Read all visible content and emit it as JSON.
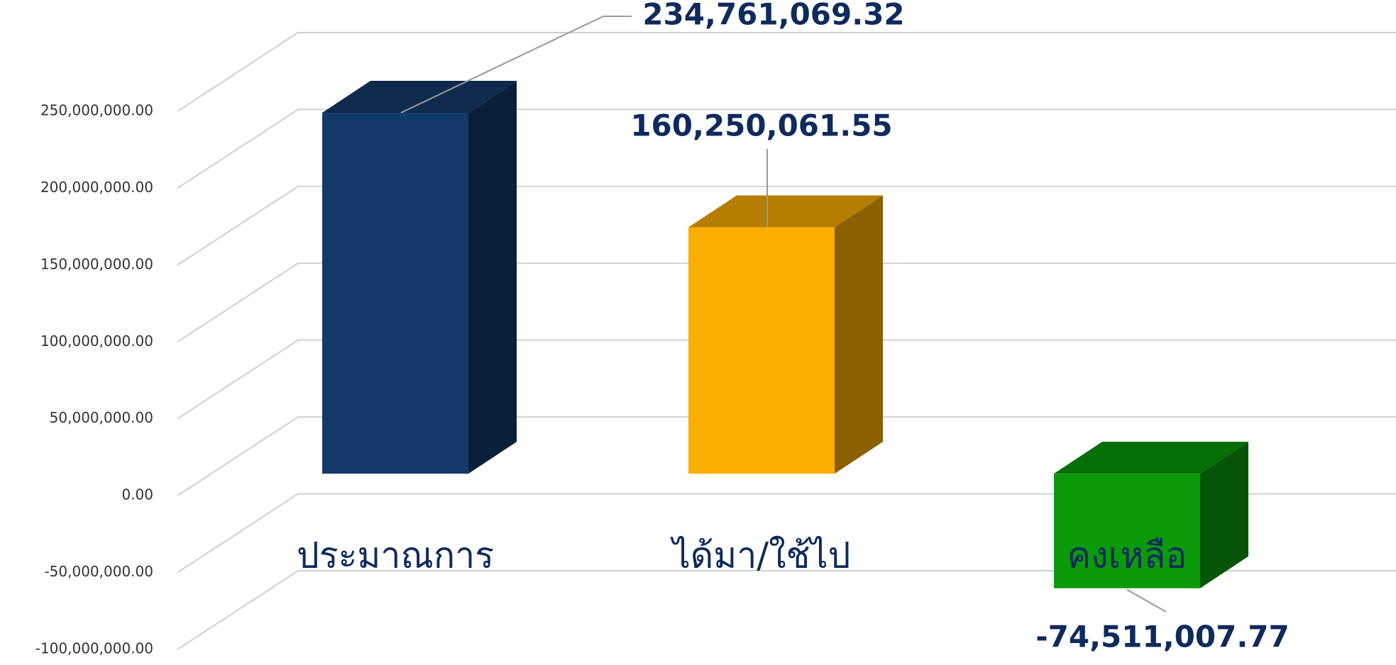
{
  "chart_data": {
    "type": "bar3d",
    "categories": [
      "ประมาณการ",
      "ได้มา/ใช้ไป",
      "คงเหลือ"
    ],
    "values": [
      234761069.32,
      160250061.55,
      -74511007.77
    ],
    "value_labels": [
      "234,761,069.32",
      "160,250,061.55",
      "-74,511,007.77"
    ],
    "colors": [
      "#133a6a",
      "#fdae00",
      "#0a9a0a"
    ],
    "ylim": [
      -100000000,
      250000000
    ],
    "yticks": [
      {
        "value": -100000000,
        "label": "-100,000,000.00"
      },
      {
        "value": -50000000,
        "label": "-50,000,000.00"
      },
      {
        "value": 0,
        "label": "0.00"
      },
      {
        "value": 50000000,
        "label": "50,000,000.00"
      },
      {
        "value": 100000000,
        "label": "100,000,000.00"
      },
      {
        "value": 150000000,
        "label": "150,000,000.00"
      },
      {
        "value": 200000000,
        "label": "200,000,000.00"
      },
      {
        "value": 250000000,
        "label": "250,000,000.00"
      }
    ],
    "grid": true
  }
}
